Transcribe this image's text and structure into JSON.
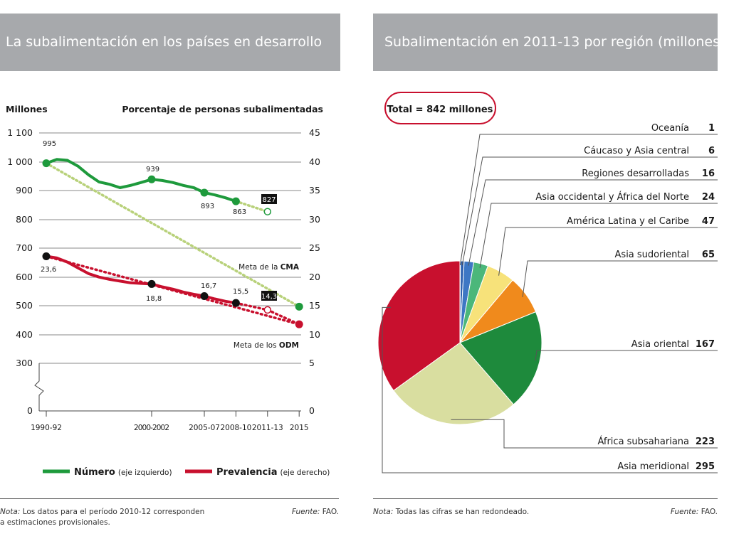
{
  "left_panel": {
    "header": "La subalimentación en los países en desarrollo",
    "note_label": "Nota:",
    "note_line1": " Los datos para el período 2010-12 corresponden",
    "note_line2": "a estimaciones provisionales.",
    "source_label": "Fuente:",
    "source_value": " FAO."
  },
  "right_panel": {
    "header": "Subalimentación en 2011-13 por región (millones)",
    "note_label": "Nota:",
    "note_text": " Todas las cifras se han redondeado.",
    "source_label": "Fuente:",
    "source_value": " FAO."
  },
  "chart_data": [
    {
      "type": "line",
      "left_axis_label": "Millones",
      "right_axis_label": "Porcentaje de personas subalimentadas",
      "left_ticks": [
        "1 100",
        "1 000",
        "900",
        "800",
        "700",
        "600",
        "500",
        "400",
        "300",
        "0"
      ],
      "right_ticks": [
        "45",
        "40",
        "35",
        "30",
        "25",
        "20",
        "15",
        "10",
        "5",
        "0"
      ],
      "x_ticks": [
        "1990-92",
        "2000-2002",
        "2005-07",
        "2008-10",
        "2011-13",
        "2015"
      ],
      "series": [
        {
          "name": "Número",
          "legend_suffix": "(eje izquierdo)",
          "color": "#1e9a3c",
          "curve": [
            [
              1991,
              995
            ],
            [
              1992,
              1008
            ],
            [
              1993,
              1005
            ],
            [
              1994,
              985
            ],
            [
              1995,
              955
            ],
            [
              1996,
              930
            ],
            [
              1997,
              922
            ],
            [
              1998,
              910
            ],
            [
              1999,
              918
            ],
            [
              2000,
              928
            ],
            [
              2001,
              939
            ],
            [
              2002,
              935
            ],
            [
              2003,
              928
            ],
            [
              2004,
              918
            ],
            [
              2005,
              910
            ],
            [
              2006,
              893
            ],
            [
              2007,
              885
            ],
            [
              2008,
              875
            ],
            [
              2009,
              863
            ]
          ],
          "projection": [
            [
              2009,
              863
            ],
            [
              2012,
              827
            ]
          ],
          "markers": [
            [
              1991,
              995
            ],
            [
              2001,
              939
            ],
            [
              2006,
              893
            ],
            [
              2009,
              863
            ]
          ],
          "open_marker": [
            2012,
            827
          ],
          "labels": [
            "995",
            "939",
            "893",
            "863",
            "827"
          ]
        },
        {
          "name": "Prevalencia",
          "legend_suffix": "(eje derecho)",
          "color": "#c8102e",
          "curve": [
            [
              1991,
              23.6
            ],
            [
              1992,
              23.3
            ],
            [
              1993,
              22.6
            ],
            [
              1994,
              21.6
            ],
            [
              1995,
              20.6
            ],
            [
              1996,
              20.0
            ],
            [
              1997,
              19.6
            ],
            [
              1998,
              19.3
            ],
            [
              1999,
              19.0
            ],
            [
              2000,
              18.9
            ],
            [
              2001,
              18.8
            ],
            [
              2002,
              18.3
            ],
            [
              2003,
              17.9
            ],
            [
              2004,
              17.4
            ],
            [
              2005,
              17.0
            ],
            [
              2006,
              16.7
            ],
            [
              2007,
              16.2
            ],
            [
              2008,
              15.8
            ],
            [
              2009,
              15.5
            ]
          ],
          "projection": [
            [
              2009,
              15.5
            ],
            [
              2012,
              14.3
            ],
            [
              2015,
              11.8
            ]
          ],
          "target_trend": [
            [
              1991,
              23.6
            ],
            [
              2015,
              11.8
            ]
          ],
          "markers": [
            [
              1991,
              23.6
            ],
            [
              2001,
              18.8
            ],
            [
              2006,
              16.7
            ],
            [
              2009,
              15.5
            ]
          ],
          "open_marker": [
            2012,
            14.3
          ],
          "end_marker": [
            2015,
            11.8
          ],
          "labels": [
            "23,6",
            "18,8",
            "16,7",
            "15,5",
            "14,3"
          ]
        }
      ],
      "cma_trend": [
        [
          1991,
          995
        ],
        [
          2015,
          497.5
        ]
      ],
      "cma_end_marker": [
        2015,
        497.5
      ],
      "annotation_cma_prefix": "Meta de la ",
      "annotation_cma_bold": "CMA",
      "annotation_odm_prefix": "Meta de los ",
      "annotation_odm_bold": "ODM"
    },
    {
      "type": "pie",
      "total_label": "Total = 842 millones",
      "slices": [
        {
          "label": "Oceanía",
          "value": 1,
          "color": "#d9d9d9"
        },
        {
          "label": "Cáucaso y Asia central",
          "value": 6,
          "color": "#2b5fae"
        },
        {
          "label": "Regiones desarrolladas",
          "value": 16,
          "color": "#3d77c4"
        },
        {
          "label": "Asia occidental y África del Norte",
          "value": 24,
          "color": "#4bb77a"
        },
        {
          "label": "América Latina y el Caribe",
          "value": 47,
          "color": "#f7e27a"
        },
        {
          "label": "Asia sudoriental",
          "value": 65,
          "color": "#f08a1c"
        },
        {
          "label": "Asia oriental",
          "value": 167,
          "color": "#1e8a3c"
        },
        {
          "label": "África subsahariana",
          "value": 223,
          "color": "#d9dea0"
        },
        {
          "label": "Asia meridional",
          "value": 295,
          "color": "#c8102e"
        }
      ]
    }
  ]
}
